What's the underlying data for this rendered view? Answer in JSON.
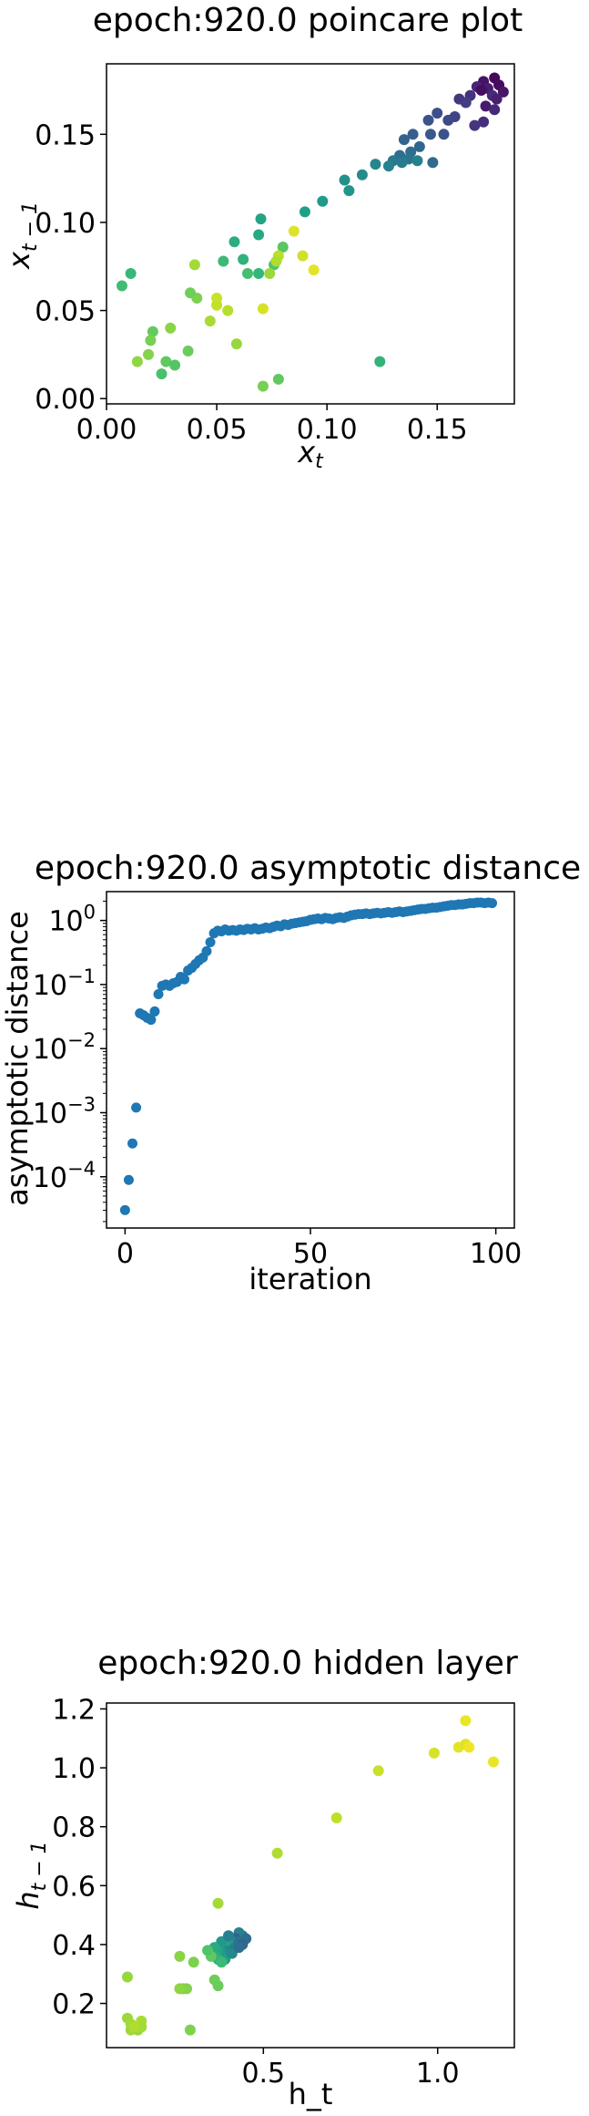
{
  "chart_data": [
    {
      "type": "scatter",
      "title": "epoch:920.0 poincare plot",
      "xlabel": "x_t",
      "ylabel": "x_{t-1}",
      "xlim": [
        0.0,
        0.185
      ],
      "ylim": [
        -0.003,
        0.19
      ],
      "xticks": [
        0.0,
        0.05,
        0.1,
        0.15
      ],
      "xtick_labels": [
        "0.00",
        "0.05",
        "0.10",
        "0.15"
      ],
      "yticks": [
        0.0,
        0.05,
        0.1,
        0.15
      ],
      "ytick_labels": [
        "0.00",
        "0.05",
        "0.10",
        "0.15"
      ],
      "grid": false,
      "colormap": "viridis",
      "color_encoding": "iteration order (early = dark purple, late = yellow)",
      "points": [
        {
          "x": 0.176,
          "y": 0.182,
          "c": 0.02
        },
        {
          "x": 0.171,
          "y": 0.18,
          "c": 0.05
        },
        {
          "x": 0.178,
          "y": 0.178,
          "c": 0.03
        },
        {
          "x": 0.173,
          "y": 0.176,
          "c": 0.08
        },
        {
          "x": 0.18,
          "y": 0.174,
          "c": 0.06
        },
        {
          "x": 0.168,
          "y": 0.177,
          "c": 0.1
        },
        {
          "x": 0.175,
          "y": 0.172,
          "c": 0.12
        },
        {
          "x": 0.17,
          "y": 0.175,
          "c": 0.04
        },
        {
          "x": 0.177,
          "y": 0.17,
          "c": 0.09
        },
        {
          "x": 0.165,
          "y": 0.172,
          "c": 0.14
        },
        {
          "x": 0.16,
          "y": 0.17,
          "c": 0.16
        },
        {
          "x": 0.163,
          "y": 0.168,
          "c": 0.18
        },
        {
          "x": 0.172,
          "y": 0.166,
          "c": 0.07
        },
        {
          "x": 0.176,
          "y": 0.164,
          "c": 0.11
        },
        {
          "x": 0.171,
          "y": 0.157,
          "c": 0.13
        },
        {
          "x": 0.167,
          "y": 0.155,
          "c": 0.15
        },
        {
          "x": 0.158,
          "y": 0.16,
          "c": 0.2
        },
        {
          "x": 0.155,
          "y": 0.158,
          "c": 0.22
        },
        {
          "x": 0.15,
          "y": 0.162,
          "c": 0.24
        },
        {
          "x": 0.146,
          "y": 0.158,
          "c": 0.26
        },
        {
          "x": 0.147,
          "y": 0.15,
          "c": 0.28
        },
        {
          "x": 0.153,
          "y": 0.15,
          "c": 0.25
        },
        {
          "x": 0.139,
          "y": 0.15,
          "c": 0.3
        },
        {
          "x": 0.135,
          "y": 0.147,
          "c": 0.32
        },
        {
          "x": 0.142,
          "y": 0.143,
          "c": 0.33
        },
        {
          "x": 0.138,
          "y": 0.14,
          "c": 0.35
        },
        {
          "x": 0.133,
          "y": 0.138,
          "c": 0.36
        },
        {
          "x": 0.137,
          "y": 0.136,
          "c": 0.38
        },
        {
          "x": 0.13,
          "y": 0.135,
          "c": 0.4
        },
        {
          "x": 0.134,
          "y": 0.134,
          "c": 0.42
        },
        {
          "x": 0.141,
          "y": 0.135,
          "c": 0.44
        },
        {
          "x": 0.128,
          "y": 0.132,
          "c": 0.45
        },
        {
          "x": 0.148,
          "y": 0.134,
          "c": 0.34
        },
        {
          "x": 0.122,
          "y": 0.133,
          "c": 0.46
        },
        {
          "x": 0.116,
          "y": 0.127,
          "c": 0.48
        },
        {
          "x": 0.108,
          "y": 0.124,
          "c": 0.5
        },
        {
          "x": 0.11,
          "y": 0.118,
          "c": 0.52
        },
        {
          "x": 0.098,
          "y": 0.112,
          "c": 0.54
        },
        {
          "x": 0.09,
          "y": 0.106,
          "c": 0.56
        },
        {
          "x": 0.07,
          "y": 0.102,
          "c": 0.58
        },
        {
          "x": 0.069,
          "y": 0.093,
          "c": 0.6
        },
        {
          "x": 0.058,
          "y": 0.089,
          "c": 0.62
        },
        {
          "x": 0.062,
          "y": 0.079,
          "c": 0.64
        },
        {
          "x": 0.069,
          "y": 0.071,
          "c": 0.66
        },
        {
          "x": 0.053,
          "y": 0.078,
          "c": 0.68
        },
        {
          "x": 0.064,
          "y": 0.071,
          "c": 0.7
        },
        {
          "x": 0.076,
          "y": 0.076,
          "c": 0.72
        },
        {
          "x": 0.08,
          "y": 0.086,
          "c": 0.74
        },
        {
          "x": 0.085,
          "y": 0.095,
          "c": 0.95
        },
        {
          "x": 0.078,
          "y": 0.081,
          "c": 0.9
        },
        {
          "x": 0.074,
          "y": 0.071,
          "c": 0.85
        },
        {
          "x": 0.077,
          "y": 0.078,
          "c": 0.88
        },
        {
          "x": 0.089,
          "y": 0.081,
          "c": 0.93
        },
        {
          "x": 0.094,
          "y": 0.073,
          "c": 0.96
        },
        {
          "x": 0.071,
          "y": 0.051,
          "c": 0.94
        },
        {
          "x": 0.05,
          "y": 0.057,
          "c": 0.92
        },
        {
          "x": 0.05,
          "y": 0.053,
          "c": 0.91
        },
        {
          "x": 0.055,
          "y": 0.05,
          "c": 0.89
        },
        {
          "x": 0.047,
          "y": 0.044,
          "c": 0.87
        },
        {
          "x": 0.04,
          "y": 0.076,
          "c": 0.86
        },
        {
          "x": 0.041,
          "y": 0.057,
          "c": 0.8
        },
        {
          "x": 0.038,
          "y": 0.06,
          "c": 0.78
        },
        {
          "x": 0.029,
          "y": 0.04,
          "c": 0.82
        },
        {
          "x": 0.021,
          "y": 0.038,
          "c": 0.76
        },
        {
          "x": 0.02,
          "y": 0.033,
          "c": 0.79
        },
        {
          "x": 0.019,
          "y": 0.025,
          "c": 0.81
        },
        {
          "x": 0.037,
          "y": 0.027,
          "c": 0.77
        },
        {
          "x": 0.027,
          "y": 0.021,
          "c": 0.75
        },
        {
          "x": 0.031,
          "y": 0.019,
          "c": 0.73
        },
        {
          "x": 0.025,
          "y": 0.014,
          "c": 0.71
        },
        {
          "x": 0.014,
          "y": 0.021,
          "c": 0.83
        },
        {
          "x": 0.007,
          "y": 0.064,
          "c": 0.69
        },
        {
          "x": 0.011,
          "y": 0.071,
          "c": 0.67
        },
        {
          "x": 0.059,
          "y": 0.031,
          "c": 0.84
        },
        {
          "x": 0.071,
          "y": 0.007,
          "c": 0.79
        },
        {
          "x": 0.078,
          "y": 0.011,
          "c": 0.75
        },
        {
          "x": 0.124,
          "y": 0.021,
          "c": 0.65
        }
      ]
    },
    {
      "type": "scatter",
      "title": "epoch:920.0 asymptotic distance",
      "xlabel": "iteration",
      "ylabel": "asymptotic distance",
      "xscale": "linear",
      "yscale": "log",
      "xlim": [
        -5,
        105
      ],
      "ylim_log10": [
        -4.8,
        0.45
      ],
      "xticks": [
        0,
        50,
        100
      ],
      "xtick_labels": [
        "0",
        "50",
        "100"
      ],
      "yticks_log10": [
        -4,
        -3,
        -2,
        -1,
        0
      ],
      "ytick_base": "10",
      "grid": false,
      "color": "#1f77b4",
      "log10_values": [
        -4.52,
        -4.05,
        -3.48,
        -2.92,
        -1.45,
        -1.48,
        -1.52,
        -1.55,
        -1.42,
        -1.15,
        -1.02,
        -1.0,
        -1.02,
        -0.98,
        -0.96,
        -0.88,
        -0.92,
        -0.78,
        -0.74,
        -0.68,
        -0.62,
        -0.58,
        -0.48,
        -0.34,
        -0.2,
        -0.16,
        -0.17,
        -0.14,
        -0.16,
        -0.15,
        -0.16,
        -0.14,
        -0.15,
        -0.13,
        -0.14,
        -0.12,
        -0.14,
        -0.13,
        -0.11,
        -0.12,
        -0.1,
        -0.08,
        -0.09,
        -0.06,
        -0.07,
        -0.05,
        -0.04,
        -0.03,
        -0.02,
        -0.01,
        0.01,
        0.02,
        0.03,
        0.02,
        0.04,
        0.03,
        0.02,
        0.04,
        0.05,
        0.04,
        0.06,
        0.08,
        0.09,
        0.1,
        0.1,
        0.11,
        0.1,
        0.11,
        0.12,
        0.11,
        0.12,
        0.13,
        0.12,
        0.13,
        0.14,
        0.13,
        0.14,
        0.15,
        0.16,
        0.17,
        0.18,
        0.18,
        0.19,
        0.2,
        0.2,
        0.21,
        0.22,
        0.23,
        0.24,
        0.24,
        0.25,
        0.25,
        0.26,
        0.27,
        0.27,
        0.28,
        0.28,
        0.27,
        0.28,
        0.27
      ]
    },
    {
      "type": "scatter",
      "title": "epoch:920.0 hidden layer",
      "xlabel": "h_t",
      "ylabel": "h_{t-1}",
      "xlim": [
        0.05,
        1.22
      ],
      "ylim": [
        0.05,
        1.22
      ],
      "xticks": [
        0.5,
        1.0
      ],
      "xtick_labels": [
        "0.5",
        "1.0"
      ],
      "yticks": [
        0.2,
        0.4,
        0.6,
        0.8,
        1.0,
        1.2
      ],
      "ytick_labels": [
        "0.2",
        "0.4",
        "0.6",
        "0.8",
        "1.0",
        "1.2"
      ],
      "grid": false,
      "colormap": "viridis",
      "points": [
        {
          "x": 1.08,
          "y": 1.16,
          "c": 0.97
        },
        {
          "x": 1.06,
          "y": 1.07,
          "c": 0.96
        },
        {
          "x": 1.08,
          "y": 1.08,
          "c": 0.95
        },
        {
          "x": 1.09,
          "y": 1.07,
          "c": 0.98
        },
        {
          "x": 0.99,
          "y": 1.05,
          "c": 0.94
        },
        {
          "x": 1.16,
          "y": 1.02,
          "c": 0.97
        },
        {
          "x": 0.83,
          "y": 0.99,
          "c": 0.92
        },
        {
          "x": 0.71,
          "y": 0.83,
          "c": 0.9
        },
        {
          "x": 0.54,
          "y": 0.71,
          "c": 0.88
        },
        {
          "x": 0.37,
          "y": 0.54,
          "c": 0.86
        },
        {
          "x": 0.44,
          "y": 0.43,
          "c": 0.4
        },
        {
          "x": 0.43,
          "y": 0.44,
          "c": 0.45
        },
        {
          "x": 0.42,
          "y": 0.42,
          "c": 0.3
        },
        {
          "x": 0.41,
          "y": 0.41,
          "c": 0.5
        },
        {
          "x": 0.45,
          "y": 0.42,
          "c": 0.35
        },
        {
          "x": 0.4,
          "y": 0.4,
          "c": 0.55
        },
        {
          "x": 0.39,
          "y": 0.39,
          "c": 0.6
        },
        {
          "x": 0.4,
          "y": 0.38,
          "c": 0.48
        },
        {
          "x": 0.38,
          "y": 0.37,
          "c": 0.52
        },
        {
          "x": 0.37,
          "y": 0.38,
          "c": 0.58
        },
        {
          "x": 0.42,
          "y": 0.39,
          "c": 0.42
        },
        {
          "x": 0.43,
          "y": 0.41,
          "c": 0.38
        },
        {
          "x": 0.36,
          "y": 0.36,
          "c": 0.62
        },
        {
          "x": 0.35,
          "y": 0.37,
          "c": 0.65
        },
        {
          "x": 0.39,
          "y": 0.35,
          "c": 0.56
        },
        {
          "x": 0.41,
          "y": 0.37,
          "c": 0.47
        },
        {
          "x": 0.44,
          "y": 0.4,
          "c": 0.33
        },
        {
          "x": 0.38,
          "y": 0.41,
          "c": 0.53
        },
        {
          "x": 0.36,
          "y": 0.39,
          "c": 0.61
        },
        {
          "x": 0.4,
          "y": 0.43,
          "c": 0.44
        },
        {
          "x": 0.43,
          "y": 0.39,
          "c": 0.36
        },
        {
          "x": 0.37,
          "y": 0.35,
          "c": 0.63
        },
        {
          "x": 0.35,
          "y": 0.36,
          "c": 0.75
        },
        {
          "x": 0.38,
          "y": 0.34,
          "c": 0.68
        },
        {
          "x": 0.34,
          "y": 0.38,
          "c": 0.72
        },
        {
          "x": 0.3,
          "y": 0.34,
          "c": 0.8
        },
        {
          "x": 0.26,
          "y": 0.36,
          "c": 0.82
        },
        {
          "x": 0.36,
          "y": 0.28,
          "c": 0.78
        },
        {
          "x": 0.37,
          "y": 0.26,
          "c": 0.77
        },
        {
          "x": 0.27,
          "y": 0.25,
          "c": 0.79
        },
        {
          "x": 0.28,
          "y": 0.25,
          "c": 0.81
        },
        {
          "x": 0.26,
          "y": 0.25,
          "c": 0.83
        },
        {
          "x": 0.11,
          "y": 0.29,
          "c": 0.84
        },
        {
          "x": 0.11,
          "y": 0.15,
          "c": 0.85
        },
        {
          "x": 0.12,
          "y": 0.13,
          "c": 0.86
        },
        {
          "x": 0.15,
          "y": 0.14,
          "c": 0.87
        },
        {
          "x": 0.12,
          "y": 0.11,
          "c": 0.85
        },
        {
          "x": 0.14,
          "y": 0.11,
          "c": 0.84
        },
        {
          "x": 0.15,
          "y": 0.12,
          "c": 0.86
        },
        {
          "x": 0.13,
          "y": 0.12,
          "c": 0.88
        },
        {
          "x": 0.29,
          "y": 0.11,
          "c": 0.8
        }
      ]
    }
  ]
}
